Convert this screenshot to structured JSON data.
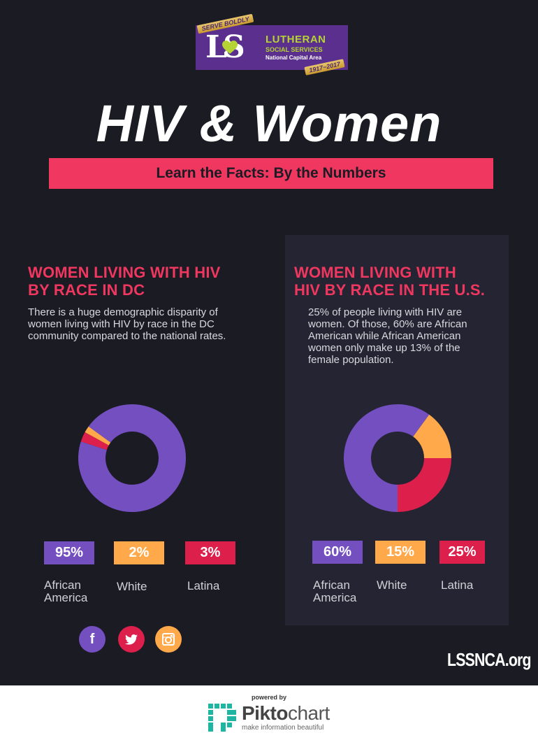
{
  "logo": {
    "ribbon_top": "SERVE BOLDLY",
    "monogram": "LS",
    "name": "LUTHERAN",
    "sub": "SOCIAL SERVICES",
    "area": "National Capital Area",
    "years": "1917~2017"
  },
  "header": {
    "title": "HIV & Women",
    "subtitle": "Learn the Facts: By the Numbers"
  },
  "colors": {
    "background": "#1b1b24",
    "panel": "#242433",
    "accent": "#f0375f",
    "african_american": "#744fc0",
    "white": "#ffa94a",
    "latina": "#dc1f4b"
  },
  "sections": [
    {
      "title": "WOMEN LIVING WITH HIV BY RACE IN DC",
      "title_line1": "WOMEN LIVING WITH HIV",
      "title_line2": "BY RACE IN DC",
      "text": "There is a huge demographic disparity of women living with HIV by race in the DC community compared to the national rates.",
      "badges": [
        {
          "value": "95%",
          "label_line1": "African",
          "label_line2": "America"
        },
        {
          "value": "2%",
          "label_line1": "White",
          "label_line2": ""
        },
        {
          "value": "3%",
          "label_line1": "Latina",
          "label_line2": ""
        }
      ]
    },
    {
      "title": "WOMEN LIVING WITH HIV BY RACE IN THE U.S.",
      "title_line1": "WOMEN LIVING WITH",
      "title_line2": "HIV BY RACE IN THE U.S.",
      "text": "25% of people living with HIV are women. Of those, 60%  are African American while African American women only make up 13% of the  female population.",
      "badges": [
        {
          "value": "60%",
          "label_line1": "African",
          "label_line2": "America"
        },
        {
          "value": "15%",
          "label_line1": "White",
          "label_line2": ""
        },
        {
          "value": "25%",
          "label_line1": "Latina",
          "label_line2": ""
        }
      ]
    }
  ],
  "chart_data": [
    {
      "type": "pie",
      "title": "WOMEN LIVING WITH HIV BY RACE IN DC",
      "donut": true,
      "categories": [
        "African America",
        "White",
        "Latina"
      ],
      "values": [
        95,
        2,
        3
      ],
      "unit": "%",
      "colors": [
        "#744fc0",
        "#ffa94a",
        "#dc1f4b"
      ]
    },
    {
      "type": "pie",
      "title": "WOMEN LIVING WITH HIV BY RACE IN THE U.S.",
      "donut": true,
      "categories": [
        "African America",
        "White",
        "Latina"
      ],
      "values": [
        60,
        15,
        25
      ],
      "unit": "%",
      "colors": [
        "#744fc0",
        "#ffa94a",
        "#dc1f4b"
      ]
    }
  ],
  "social": [
    {
      "icon": "facebook-icon",
      "glyph": "f"
    },
    {
      "icon": "twitter-icon",
      "glyph": "t"
    },
    {
      "icon": "instagram-icon",
      "glyph": ""
    }
  ],
  "site": "LSSNCA.org",
  "footer": {
    "powered_by": "powered by",
    "brand_bold": "Pikto",
    "brand_light": "chart",
    "tagline": "make information beautiful"
  }
}
